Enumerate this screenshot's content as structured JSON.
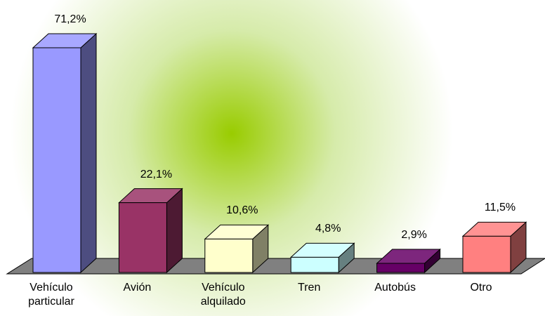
{
  "chart_data": {
    "type": "bar3d",
    "categories": [
      "Vehículo particular",
      "Avión",
      "Vehículo alquilado",
      "Tren",
      "Autobús",
      "Otro"
    ],
    "values": [
      71.2,
      22.1,
      10.6,
      4.8,
      2.9,
      11.5
    ],
    "value_labels": [
      "71,2%",
      "22,1%",
      "10,6%",
      "4,8%",
      "2,9%",
      "11,5%"
    ],
    "colors": [
      "#9999ff",
      "#993366",
      "#ffffcc",
      "#ccffff",
      "#660066",
      "#ff8080"
    ]
  }
}
